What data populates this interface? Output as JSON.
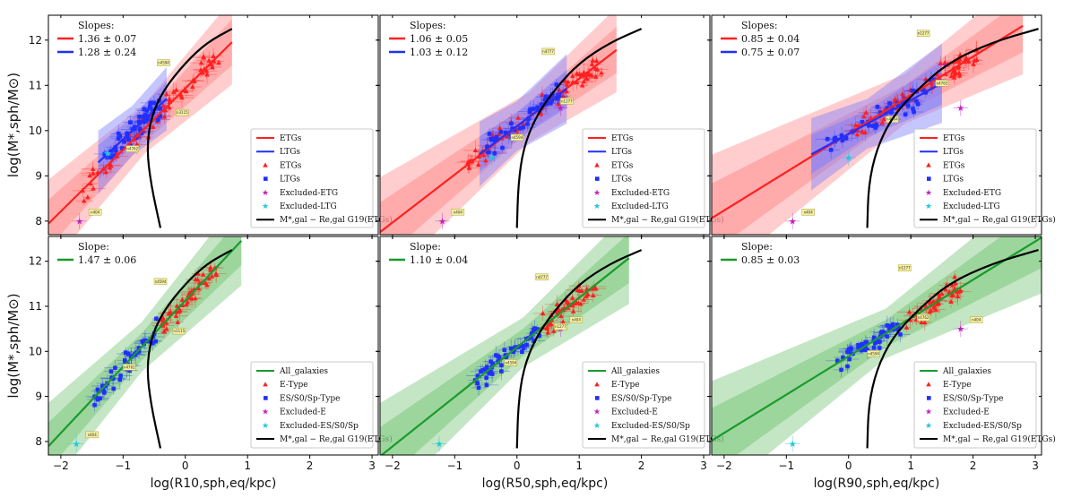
{
  "figure": {
    "y_axis_label": "log(M*,sph/M⊙)",
    "x_axis_labels": [
      "log(R10,sph,eq/kpc)",
      "log(R50,sph,eq/kpc)",
      "log(R90,sph,eq/kpc)"
    ],
    "colors": {
      "etg": "#ff2020",
      "ltg": "#2030ff",
      "all": "#1a9a2e",
      "excluded_e": "#c020c0",
      "excluded_ltg": "#20c8d8",
      "curve": "#000000",
      "band_red": "#ff9090",
      "band_blue": "#8080ff",
      "band_green": "#7cc87c"
    }
  },
  "chart_data": [
    {
      "type": "scatter",
      "panel": "top-left",
      "xlabel": "",
      "ylabel": "log(M*,sph/M⊙)",
      "xlim": [
        -2.2,
        3.1
      ],
      "ylim": [
        7.7,
        12.55
      ],
      "xticks": [
        "−2",
        "−1",
        "0",
        "1",
        "2",
        "3"
      ],
      "yticks": [
        "8",
        "9",
        "10",
        "11",
        "12"
      ],
      "slopes_title": "Slopes:",
      "slopes": [
        {
          "text": "1.36 ± 0.07",
          "color": "#ff2020"
        },
        {
          "text": "1.28 ± 0.24",
          "color": "#2030ff"
        }
      ],
      "fits": [
        {
          "name": "ETGs",
          "color": "#ff2020",
          "x0": -0.65,
          "y0": 10.05,
          "slope": 1.36,
          "xmin": -2.2,
          "xmax": 0.75
        },
        {
          "name": "LTGs",
          "color": "#2030ff",
          "x0": -0.85,
          "y0": 10.0,
          "slope": 1.28,
          "xmin": -1.4,
          "xmax": -0.3
        }
      ],
      "curve": {
        "label": "M*,gal − Re,gal G19(ETGs)",
        "xs": [
          -0.4,
          -0.55,
          -0.62,
          -0.55,
          -0.35,
          0.0,
          0.35,
          0.75
        ],
        "ys": [
          7.85,
          8.8,
          9.6,
          10.3,
          10.9,
          11.5,
          11.95,
          12.25
        ]
      },
      "legend": [
        "ETGs",
        "LTGs",
        "ETGs",
        "LTGs",
        "Excluded-ETG",
        "Excluded-LTG",
        "M*,gal − Re,gal G19(ETGs)"
      ],
      "excluded": {
        "e": [
          [
            -1.7,
            8.0
          ]
        ],
        "ltg": [
          [
            -1.25,
            9.5
          ]
        ]
      },
      "annotations": [
        "n404",
        "n4762",
        "n4594",
        "n3115"
      ]
    },
    {
      "type": "scatter",
      "panel": "top-middle",
      "xlabel": "",
      "ylabel": "",
      "xlim": [
        -2.2,
        3.1
      ],
      "ylim": [
        7.7,
        12.55
      ],
      "xticks": [
        "−2",
        "−1",
        "0",
        "1",
        "2",
        "3"
      ],
      "yticks": [],
      "slopes_title": "Slopes:",
      "slopes": [
        {
          "text": "1.06 ± 0.05",
          "color": "#ff2020"
        },
        {
          "text": "1.03 ± 0.12",
          "color": "#2030ff"
        }
      ],
      "fits": [
        {
          "name": "ETGs",
          "color": "#ff2020",
          "x0": 0.2,
          "y0": 10.3,
          "slope": 1.06,
          "xmin": -2.2,
          "xmax": 1.6
        },
        {
          "name": "LTGs",
          "color": "#2030ff",
          "x0": 0.0,
          "y0": 10.1,
          "slope": 1.03,
          "xmin": -0.6,
          "xmax": 0.8
        }
      ],
      "curve": {
        "label": "M*,gal − Re,gal G19(ETGs)",
        "xs": [
          0.0,
          0.02,
          0.1,
          0.3,
          0.6,
          1.0,
          1.5,
          2.0
        ],
        "ys": [
          7.85,
          8.8,
          9.6,
          10.3,
          10.9,
          11.5,
          11.95,
          12.25
        ]
      },
      "legend": [
        "ETGs",
        "LTGs",
        "ETGs",
        "LTGs",
        "Excluded-ETG",
        "Excluded-LTG",
        "M*,gal − Re,gal G19(ETGs)"
      ],
      "excluded": {
        "e": [
          [
            -1.2,
            8.0
          ],
          [
            0.7,
            10.5
          ]
        ],
        "ltg": [
          [
            -0.4,
            9.4
          ]
        ]
      },
      "annotations": [
        "n404",
        "n4594",
        "n4777",
        "n1277"
      ]
    },
    {
      "type": "scatter",
      "panel": "top-right",
      "xlabel": "",
      "ylabel": "",
      "xlim": [
        -2.2,
        3.1
      ],
      "ylim": [
        7.7,
        12.55
      ],
      "xticks": [
        "−2",
        "−1",
        "0",
        "1",
        "2",
        "3"
      ],
      "yticks": [],
      "slopes_title": "Slopes:",
      "slopes": [
        {
          "text": "0.85 ± 0.04",
          "color": "#ff2020"
        },
        {
          "text": "0.75 ± 0.07",
          "color": "#2030ff"
        }
      ],
      "fits": [
        {
          "name": "ETGs",
          "color": "#ff2020",
          "x0": 0.9,
          "y0": 10.7,
          "slope": 0.85,
          "xmin": -2.2,
          "xmax": 2.8
        },
        {
          "name": "LTGs",
          "color": "#2030ff",
          "x0": 0.3,
          "y0": 10.15,
          "slope": 0.75,
          "xmin": -0.6,
          "xmax": 1.5
        }
      ],
      "curve": {
        "label": "M*,gal − Re,gal G19(ETGs)",
        "xs": [
          0.3,
          0.32,
          0.45,
          0.7,
          1.1,
          1.6,
          2.3,
          3.05
        ],
        "ys": [
          7.85,
          8.8,
          9.6,
          10.3,
          10.9,
          11.5,
          11.95,
          12.25
        ]
      },
      "legend": [
        "ETGs",
        "LTGs",
        "ETGs",
        "LTGs",
        "Excluded-ETG",
        "Excluded-LTG",
        "M*,gal − Re,gal G19(ETGs)"
      ],
      "excluded": {
        "e": [
          [
            -0.9,
            8.0
          ],
          [
            1.8,
            10.5
          ],
          [
            1.55,
            11.45
          ]
        ],
        "ltg": [
          [
            0.0,
            9.4
          ]
        ]
      },
      "annotations": [
        "n404",
        "n4594",
        "n1277",
        "n4762"
      ]
    },
    {
      "type": "scatter",
      "panel": "bottom-left",
      "xlabel": "log(R10,sph,eq/kpc)",
      "ylabel": "log(M*,sph/M⊙)",
      "xlim": [
        -2.2,
        3.1
      ],
      "ylim": [
        7.7,
        12.55
      ],
      "xticks": [
        "−2",
        "−1",
        "0",
        "1",
        "2",
        "3"
      ],
      "yticks": [
        "8",
        "9",
        "10",
        "11",
        "12"
      ],
      "slopes_title": "Slope:",
      "slopes": [
        {
          "text": "1.47 ± 0.06",
          "color": "#1a9a2e"
        }
      ],
      "fits": [
        {
          "name": "All_galaxies",
          "color": "#1a9a2e",
          "x0": -0.7,
          "y0": 10.1,
          "slope": 1.47,
          "xmin": -2.2,
          "xmax": 0.9
        }
      ],
      "curve": {
        "label": "M*,gal − Re,gal G19(ETGs)",
        "xs": [
          -0.4,
          -0.55,
          -0.62,
          -0.55,
          -0.35,
          0.0,
          0.35,
          0.75
        ],
        "ys": [
          7.85,
          8.8,
          9.6,
          10.3,
          10.9,
          11.5,
          11.95,
          12.25
        ]
      },
      "legend": [
        "All_galaxies",
        "E-Type",
        "ES/S0/Sp-Type",
        "Excluded-E",
        "Excluded-ES/S0/Sp",
        "M*,gal − Re,gal G19(ETGs)"
      ],
      "excluded": {
        "e": [],
        "ltg": [
          [
            -1.75,
            7.95
          ]
        ]
      },
      "annotations": [
        "n404",
        "n4762",
        "n4594",
        "n3115"
      ]
    },
    {
      "type": "scatter",
      "panel": "bottom-middle",
      "xlabel": "log(R50,sph,eq/kpc)",
      "ylabel": "",
      "xlim": [
        -2.2,
        3.1
      ],
      "ylim": [
        7.7,
        12.55
      ],
      "xticks": [
        "−2",
        "−1",
        "0",
        "1",
        "2",
        "3"
      ],
      "yticks": [],
      "slopes_title": "Slope:",
      "slopes": [
        {
          "text": "1.10 ± 0.04",
          "color": "#1a9a2e"
        }
      ],
      "fits": [
        {
          "name": "All_galaxies",
          "color": "#1a9a2e",
          "x0": 0.1,
          "y0": 10.2,
          "slope": 1.1,
          "xmin": -2.2,
          "xmax": 1.8
        }
      ],
      "curve": {
        "label": "M*,gal − Re,gal G19(ETGs)",
        "xs": [
          0.0,
          0.02,
          0.1,
          0.3,
          0.6,
          1.0,
          1.5,
          2.0
        ],
        "ys": [
          7.85,
          8.8,
          9.6,
          10.3,
          10.9,
          11.5,
          11.95,
          12.25
        ]
      },
      "legend": [
        "All_galaxies",
        "E-Type",
        "ES/S0/Sp-Type",
        "Excluded-E",
        "Excluded-ES/S0/Sp",
        "M*,gal − Re,gal G19(ETGs)"
      ],
      "excluded": {
        "e": [
          [
            0.7,
            10.5
          ]
        ],
        "ltg": [
          [
            -1.25,
            7.95
          ]
        ]
      },
      "annotations": [
        "n404",
        "n4594",
        "n4777",
        "n1277"
      ]
    },
    {
      "type": "scatter",
      "panel": "bottom-right",
      "xlabel": "log(R90,sph,eq/kpc)",
      "ylabel": "",
      "xlim": [
        -2.2,
        3.1
      ],
      "ylim": [
        7.7,
        12.55
      ],
      "xticks": [
        "−2",
        "−1",
        "0",
        "1",
        "2",
        "3"
      ],
      "yticks": [],
      "slopes_title": "Slope:",
      "slopes": [
        {
          "text": "0.85 ± 0.03",
          "color": "#1a9a2e"
        }
      ],
      "fits": [
        {
          "name": "All_galaxies",
          "color": "#1a9a2e",
          "x0": 0.6,
          "y0": 10.4,
          "slope": 0.85,
          "xmin": -2.2,
          "xmax": 3.1
        }
      ],
      "curve": {
        "label": "M*,gal − Re,gal G19(ETGs)",
        "xs": [
          0.3,
          0.32,
          0.45,
          0.7,
          1.1,
          1.6,
          2.3,
          3.05
        ],
        "ys": [
          7.85,
          8.8,
          9.6,
          10.3,
          10.9,
          11.5,
          11.95,
          12.25
        ]
      },
      "legend": [
        "All_galaxies",
        "E-Type",
        "ES/S0/Sp-Type",
        "Excluded-E",
        "Excluded-ES/S0/Sp",
        "M*,gal − Re,gal G19(ETGs)"
      ],
      "excluded": {
        "e": [
          [
            1.8,
            10.5
          ]
        ],
        "ltg": [
          [
            -0.9,
            7.95
          ]
        ]
      },
      "annotations": [
        "n404",
        "n4594",
        "n1277",
        "n4762"
      ]
    }
  ]
}
